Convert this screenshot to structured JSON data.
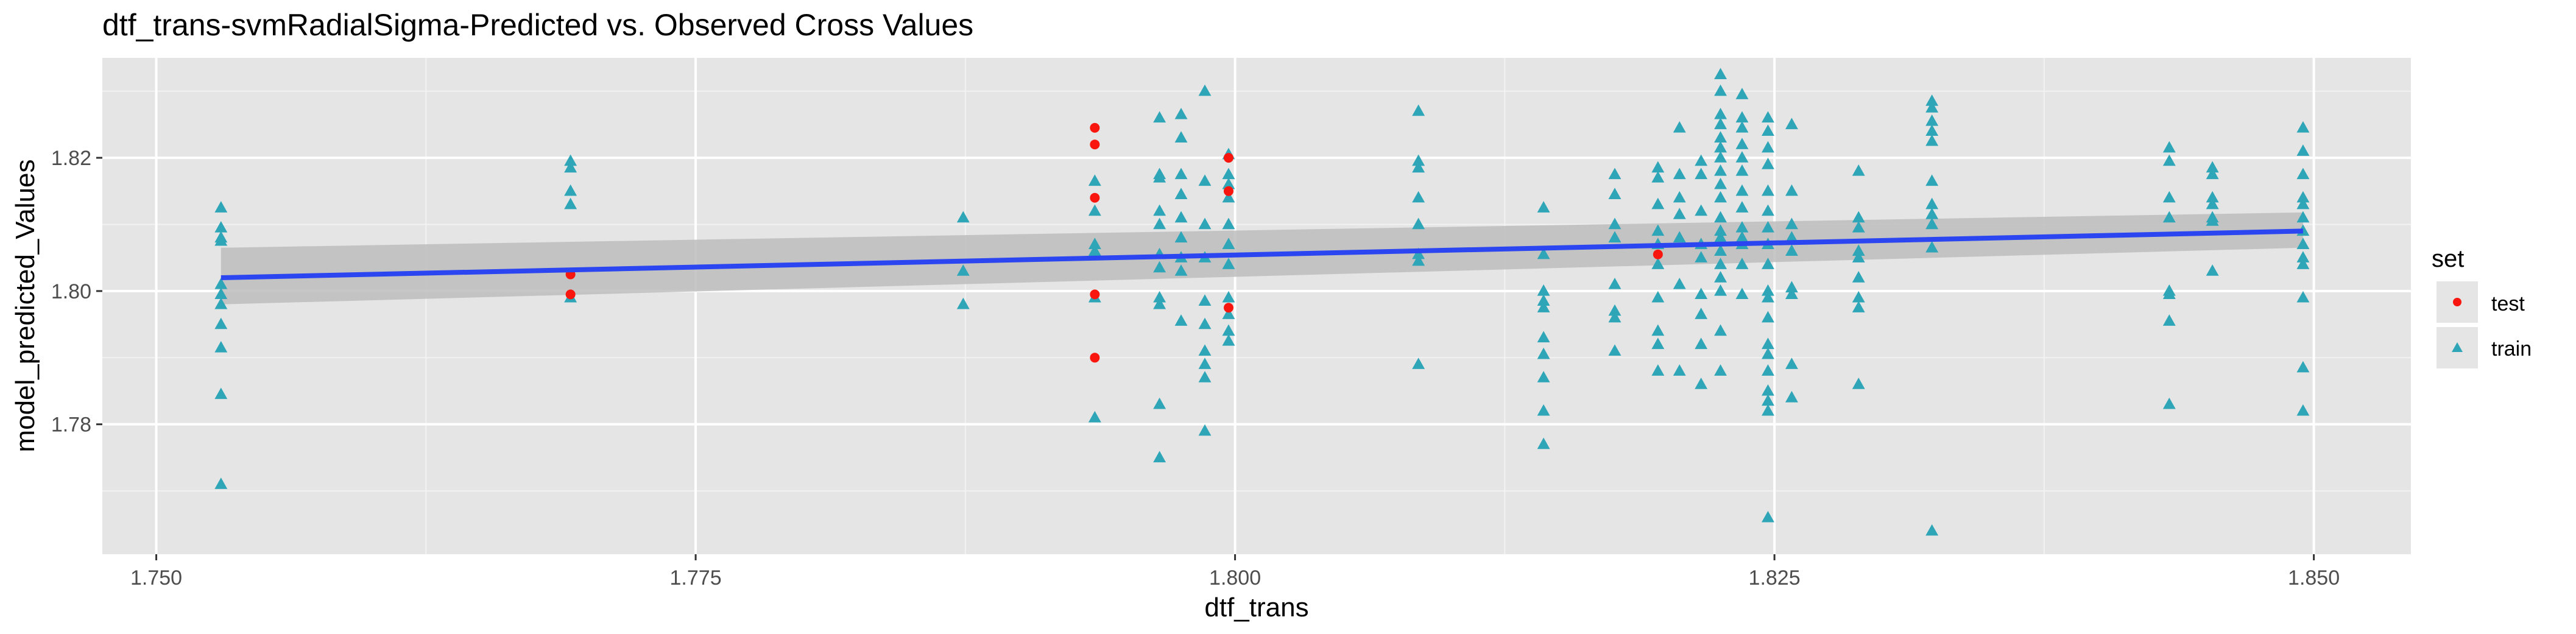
{
  "chart_data": {
    "type": "scatter",
    "title": "dtf_trans-svmRadialSigma-Predicted vs. Observed Cross Values",
    "xlabel": "dtf_trans",
    "ylabel": "model_predicted_Values",
    "xlim": [
      1.7475,
      1.8545
    ],
    "ylim": [
      1.7605,
      1.835
    ],
    "x_ticks": [
      1.75,
      1.775,
      1.8,
      1.825,
      1.85
    ],
    "x_tick_labels": [
      "1.750",
      "1.775",
      "1.800",
      "1.825",
      "1.850"
    ],
    "y_ticks": [
      1.78,
      1.8,
      1.82
    ],
    "y_tick_labels": [
      "1.78",
      "1.80",
      "1.82"
    ],
    "grid": true,
    "legend": {
      "title": "set",
      "position": "right",
      "entries": [
        {
          "label": "test",
          "shape": "circle",
          "color": "#F8160E"
        },
        {
          "label": "train",
          "shape": "triangle",
          "color": "#2FA6B8"
        }
      ]
    },
    "colors": {
      "panel_background": "#E5E5E5",
      "gridline": "#FFFFFF",
      "fit_line": "#2B45F0",
      "confidence_band": "#BDBDBD",
      "test": "#F8160E",
      "train": "#2FA6B8"
    },
    "series": [
      {
        "name": "train",
        "points": [
          [
            1.753,
            1.8125
          ],
          [
            1.753,
            1.8095
          ],
          [
            1.753,
            1.808
          ],
          [
            1.753,
            1.8075
          ],
          [
            1.753,
            1.801
          ],
          [
            1.753,
            1.7995
          ],
          [
            1.753,
            1.798
          ],
          [
            1.753,
            1.795
          ],
          [
            1.753,
            1.7915
          ],
          [
            1.753,
            1.7845
          ],
          [
            1.753,
            1.771
          ],
          [
            1.7692,
            1.8195
          ],
          [
            1.7692,
            1.8185
          ],
          [
            1.7692,
            1.815
          ],
          [
            1.7692,
            1.813
          ],
          [
            1.7692,
            1.799
          ],
          [
            1.7874,
            1.811
          ],
          [
            1.7874,
            1.803
          ],
          [
            1.7874,
            1.798
          ],
          [
            1.7935,
            1.8165
          ],
          [
            1.7935,
            1.812
          ],
          [
            1.7935,
            1.807
          ],
          [
            1.7935,
            1.806
          ],
          [
            1.7935,
            1.799
          ],
          [
            1.7935,
            1.781
          ],
          [
            1.7965,
            1.826
          ],
          [
            1.7965,
            1.8175
          ],
          [
            1.7965,
            1.817
          ],
          [
            1.7965,
            1.812
          ],
          [
            1.7965,
            1.81
          ],
          [
            1.7965,
            1.8055
          ],
          [
            1.7965,
            1.8035
          ],
          [
            1.7965,
            1.799
          ],
          [
            1.7965,
            1.798
          ],
          [
            1.7965,
            1.783
          ],
          [
            1.7965,
            1.775
          ],
          [
            1.7975,
            1.8265
          ],
          [
            1.7975,
            1.823
          ],
          [
            1.7975,
            1.8175
          ],
          [
            1.7975,
            1.8145
          ],
          [
            1.7975,
            1.811
          ],
          [
            1.7975,
            1.808
          ],
          [
            1.7975,
            1.805
          ],
          [
            1.7975,
            1.803
          ],
          [
            1.7975,
            1.7955
          ],
          [
            1.7986,
            1.83
          ],
          [
            1.7986,
            1.8165
          ],
          [
            1.7986,
            1.81
          ],
          [
            1.7986,
            1.805
          ],
          [
            1.7986,
            1.7985
          ],
          [
            1.7986,
            1.795
          ],
          [
            1.7986,
            1.791
          ],
          [
            1.7986,
            1.789
          ],
          [
            1.7986,
            1.787
          ],
          [
            1.7986,
            1.779
          ],
          [
            1.7997,
            1.8205
          ],
          [
            1.7997,
            1.8175
          ],
          [
            1.7997,
            1.816
          ],
          [
            1.7997,
            1.814
          ],
          [
            1.7997,
            1.81
          ],
          [
            1.7997,
            1.807
          ],
          [
            1.7997,
            1.804
          ],
          [
            1.7997,
            1.799
          ],
          [
            1.7997,
            1.7965
          ],
          [
            1.7997,
            1.794
          ],
          [
            1.7997,
            1.7925
          ],
          [
            1.8085,
            1.827
          ],
          [
            1.8085,
            1.8195
          ],
          [
            1.8085,
            1.8185
          ],
          [
            1.8085,
            1.814
          ],
          [
            1.8085,
            1.81
          ],
          [
            1.8085,
            1.8055
          ],
          [
            1.8085,
            1.8045
          ],
          [
            1.8085,
            1.789
          ],
          [
            1.8143,
            1.8125
          ],
          [
            1.8143,
            1.8055
          ],
          [
            1.8143,
            1.8
          ],
          [
            1.8143,
            1.7985
          ],
          [
            1.8143,
            1.7975
          ],
          [
            1.8143,
            1.793
          ],
          [
            1.8143,
            1.7905
          ],
          [
            1.8143,
            1.787
          ],
          [
            1.8143,
            1.782
          ],
          [
            1.8143,
            1.777
          ],
          [
            1.8176,
            1.8175
          ],
          [
            1.8176,
            1.8145
          ],
          [
            1.8176,
            1.81
          ],
          [
            1.8176,
            1.808
          ],
          [
            1.8176,
            1.801
          ],
          [
            1.8176,
            1.797
          ],
          [
            1.8176,
            1.796
          ],
          [
            1.8176,
            1.791
          ],
          [
            1.8196,
            1.8185
          ],
          [
            1.8196,
            1.817
          ],
          [
            1.8196,
            1.813
          ],
          [
            1.8196,
            1.809
          ],
          [
            1.8196,
            1.807
          ],
          [
            1.8196,
            1.804
          ],
          [
            1.8196,
            1.799
          ],
          [
            1.8196,
            1.794
          ],
          [
            1.8196,
            1.792
          ],
          [
            1.8196,
            1.788
          ],
          [
            1.8206,
            1.8245
          ],
          [
            1.8206,
            1.8175
          ],
          [
            1.8206,
            1.814
          ],
          [
            1.8206,
            1.8115
          ],
          [
            1.8206,
            1.808
          ],
          [
            1.8206,
            1.801
          ],
          [
            1.8206,
            1.788
          ],
          [
            1.8216,
            1.8195
          ],
          [
            1.8216,
            1.8175
          ],
          [
            1.8216,
            1.812
          ],
          [
            1.8216,
            1.807
          ],
          [
            1.8216,
            1.805
          ],
          [
            1.8216,
            1.7995
          ],
          [
            1.8216,
            1.7965
          ],
          [
            1.8216,
            1.792
          ],
          [
            1.8216,
            1.786
          ],
          [
            1.8225,
            1.8325
          ],
          [
            1.8225,
            1.83
          ],
          [
            1.8225,
            1.8265
          ],
          [
            1.8225,
            1.825
          ],
          [
            1.8225,
            1.823
          ],
          [
            1.8225,
            1.8215
          ],
          [
            1.8225,
            1.82
          ],
          [
            1.8225,
            1.818
          ],
          [
            1.8225,
            1.816
          ],
          [
            1.8225,
            1.814
          ],
          [
            1.8225,
            1.811
          ],
          [
            1.8225,
            1.809
          ],
          [
            1.8225,
            1.808
          ],
          [
            1.8225,
            1.806
          ],
          [
            1.8225,
            1.804
          ],
          [
            1.8225,
            1.802
          ],
          [
            1.8225,
            1.8
          ],
          [
            1.8225,
            1.794
          ],
          [
            1.8225,
            1.788
          ],
          [
            1.8235,
            1.8295
          ],
          [
            1.8235,
            1.826
          ],
          [
            1.8235,
            1.8245
          ],
          [
            1.8235,
            1.822
          ],
          [
            1.8235,
            1.82
          ],
          [
            1.8235,
            1.818
          ],
          [
            1.8235,
            1.815
          ],
          [
            1.8235,
            1.8125
          ],
          [
            1.8235,
            1.8095
          ],
          [
            1.8235,
            1.808
          ],
          [
            1.8235,
            1.807
          ],
          [
            1.8235,
            1.804
          ],
          [
            1.8235,
            1.7995
          ],
          [
            1.8247,
            1.826
          ],
          [
            1.8247,
            1.824
          ],
          [
            1.8247,
            1.8215
          ],
          [
            1.8247,
            1.819
          ],
          [
            1.8247,
            1.815
          ],
          [
            1.8247,
            1.812
          ],
          [
            1.8247,
            1.8095
          ],
          [
            1.8247,
            1.807
          ],
          [
            1.8247,
            1.804
          ],
          [
            1.8247,
            1.8
          ],
          [
            1.8247,
            1.799
          ],
          [
            1.8247,
            1.796
          ],
          [
            1.8247,
            1.792
          ],
          [
            1.8247,
            1.7905
          ],
          [
            1.8247,
            1.788
          ],
          [
            1.8247,
            1.785
          ],
          [
            1.8247,
            1.7835
          ],
          [
            1.8247,
            1.782
          ],
          [
            1.8247,
            1.766
          ],
          [
            1.8258,
            1.825
          ],
          [
            1.8258,
            1.815
          ],
          [
            1.8258,
            1.81
          ],
          [
            1.8258,
            1.808
          ],
          [
            1.8258,
            1.806
          ],
          [
            1.8258,
            1.8005
          ],
          [
            1.8258,
            1.7995
          ],
          [
            1.8258,
            1.789
          ],
          [
            1.8258,
            1.784
          ],
          [
            1.8289,
            1.818
          ],
          [
            1.8289,
            1.811
          ],
          [
            1.8289,
            1.8095
          ],
          [
            1.8289,
            1.806
          ],
          [
            1.8289,
            1.805
          ],
          [
            1.8289,
            1.802
          ],
          [
            1.8289,
            1.799
          ],
          [
            1.8289,
            1.7975
          ],
          [
            1.8289,
            1.786
          ],
          [
            1.8323,
            1.8285
          ],
          [
            1.8323,
            1.8275
          ],
          [
            1.8323,
            1.8255
          ],
          [
            1.8323,
            1.824
          ],
          [
            1.8323,
            1.8225
          ],
          [
            1.8323,
            1.8165
          ],
          [
            1.8323,
            1.813
          ],
          [
            1.8323,
            1.8115
          ],
          [
            1.8323,
            1.81
          ],
          [
            1.8323,
            1.8065
          ],
          [
            1.8323,
            1.764
          ],
          [
            1.8433,
            1.8215
          ],
          [
            1.8433,
            1.8195
          ],
          [
            1.8433,
            1.814
          ],
          [
            1.8433,
            1.811
          ],
          [
            1.8433,
            1.8
          ],
          [
            1.8433,
            1.7995
          ],
          [
            1.8433,
            1.7955
          ],
          [
            1.8433,
            1.783
          ],
          [
            1.8453,
            1.8185
          ],
          [
            1.8453,
            1.8175
          ],
          [
            1.8453,
            1.814
          ],
          [
            1.8453,
            1.813
          ],
          [
            1.8453,
            1.811
          ],
          [
            1.8453,
            1.8105
          ],
          [
            1.8453,
            1.803
          ],
          [
            1.8495,
            1.8245
          ],
          [
            1.8495,
            1.821
          ],
          [
            1.8495,
            1.8175
          ],
          [
            1.8495,
            1.814
          ],
          [
            1.8495,
            1.813
          ],
          [
            1.8495,
            1.811
          ],
          [
            1.8495,
            1.809
          ],
          [
            1.8495,
            1.807
          ],
          [
            1.8495,
            1.805
          ],
          [
            1.8495,
            1.804
          ],
          [
            1.8495,
            1.799
          ],
          [
            1.8495,
            1.7885
          ],
          [
            1.8495,
            1.782
          ]
        ]
      },
      {
        "name": "test",
        "points": [
          [
            1.7692,
            1.8025
          ],
          [
            1.7692,
            1.7995
          ],
          [
            1.7935,
            1.8245
          ],
          [
            1.7935,
            1.822
          ],
          [
            1.7935,
            1.814
          ],
          [
            1.7935,
            1.7995
          ],
          [
            1.7935,
            1.79
          ],
          [
            1.7997,
            1.82
          ],
          [
            1.7997,
            1.815
          ],
          [
            1.7997,
            1.7975
          ],
          [
            1.8196,
            1.8055
          ]
        ]
      }
    ],
    "fit": {
      "method": "lm",
      "x": [
        1.753,
        1.8495
      ],
      "y": [
        1.802,
        1.809
      ],
      "band_lower": [
        1.798,
        1.8065
      ],
      "band_upper": [
        1.8065,
        1.8118
      ]
    }
  }
}
